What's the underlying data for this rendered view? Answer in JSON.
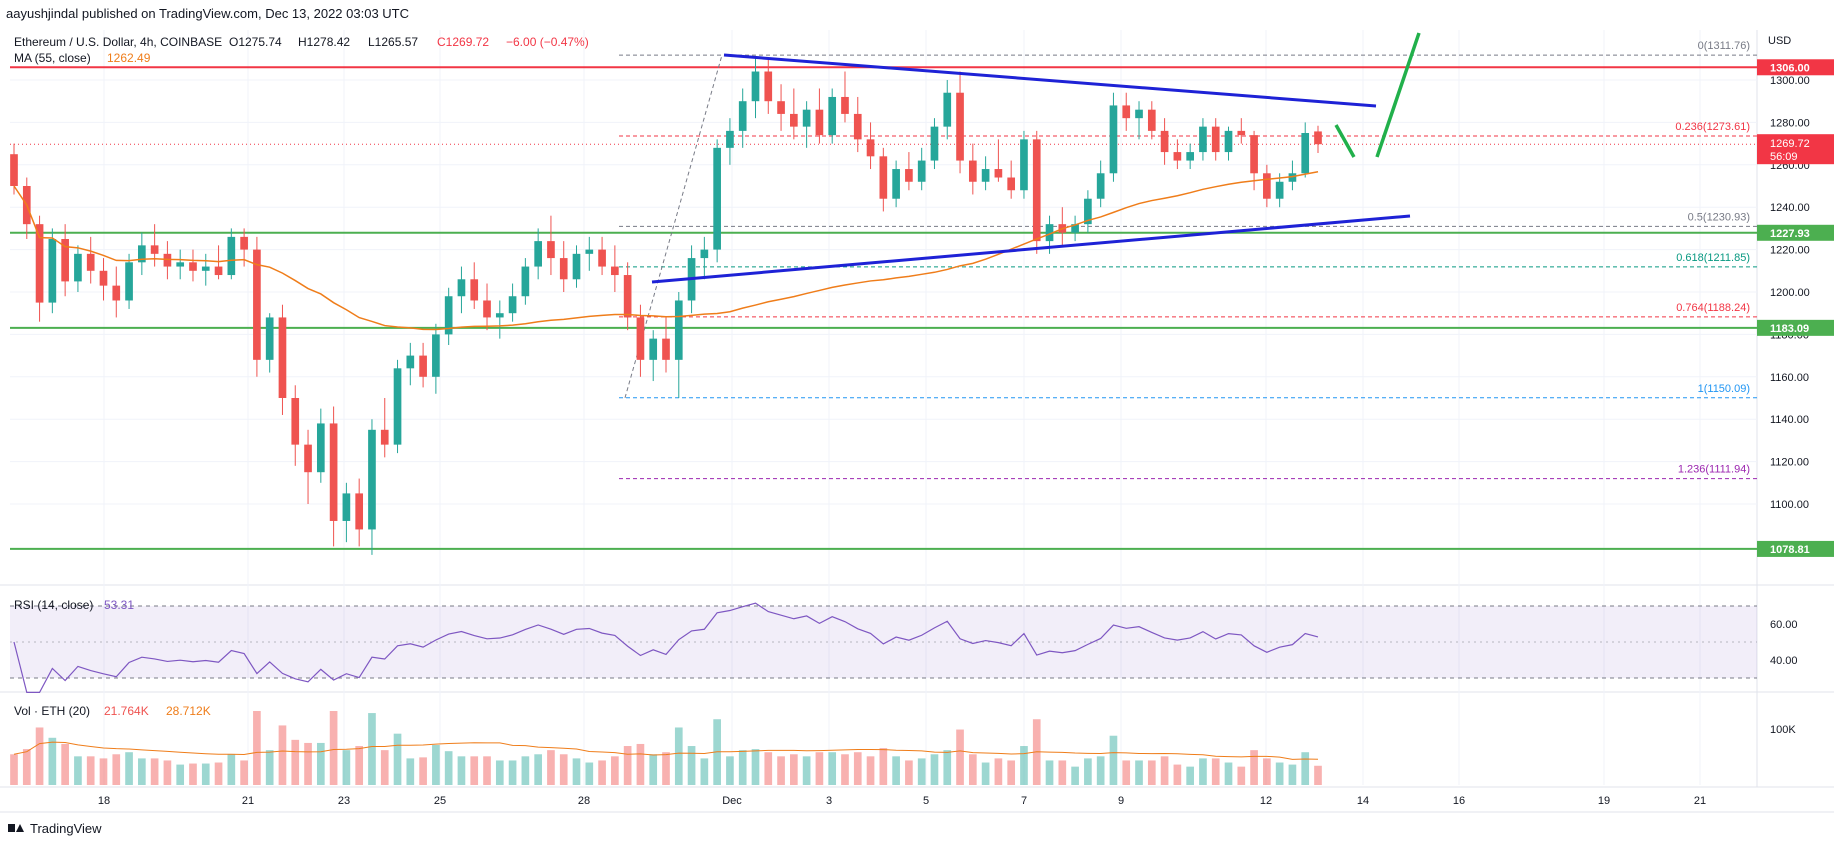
{
  "header": {
    "publisher": "aayushjindal published on TradingView.com, Dec 13, 2022 03:03 UTC"
  },
  "legend": {
    "symbol": "Ethereum / U.S. Dollar, 4h, COINBASE",
    "open": "O1275.74",
    "high": "H1278.42",
    "low": "L1265.57",
    "close": "C1269.72",
    "change": "−6.00 (−0.47%)",
    "ma_label": "MA (55, close)",
    "ma_value": "1262.49"
  },
  "price_axis": {
    "currency": "USD",
    "ticks": [
      "1300.00",
      "1280.00",
      "1260.00",
      "1240.00",
      "1220.00",
      "1200.00",
      "1180.00",
      "1160.00",
      "1140.00",
      "1120.00",
      "1100.00"
    ],
    "tick_values": [
      1300,
      1280,
      1260,
      1240,
      1220,
      1200,
      1180,
      1160,
      1140,
      1120,
      1100
    ],
    "level_labels": [
      {
        "text": "1306.00",
        "value": 1306,
        "color": "#f23645"
      },
      {
        "text": "1227.93",
        "value": 1227.93,
        "color": "#4caf50"
      },
      {
        "text": "1183.09",
        "value": 1183.09,
        "color": "#4caf50"
      },
      {
        "text": "1078.81",
        "value": 1078.81,
        "color": "#4caf50"
      }
    ],
    "current_price": "1269.72",
    "countdown": "56:09"
  },
  "fib_levels": [
    {
      "label": "0(1311.76)",
      "value": 1311.76,
      "color": "#787b86"
    },
    {
      "label": "0.236(1273.61)",
      "value": 1273.61,
      "color": "#f23645"
    },
    {
      "label": "0.5(1230.93)",
      "value": 1230.93,
      "color": "#787b86"
    },
    {
      "label": "0.618(1211.85)",
      "value": 1211.85,
      "color": "#089981"
    },
    {
      "label": "0.764(1188.24)",
      "value": 1188.24,
      "color": "#f23645"
    },
    {
      "label": "1(1150.09)",
      "value": 1150.09,
      "color": "#2196f3"
    },
    {
      "label": "1.236(1111.94)",
      "value": 1111.94,
      "color": "#9c27b0"
    }
  ],
  "time_axis": [
    "18",
    "21",
    "23",
    "25",
    "28",
    "Dec",
    "3",
    "5",
    "7",
    "9",
    "12",
    "14",
    "16",
    "19",
    "21"
  ],
  "rsi": {
    "label": "RSI (14, close)",
    "value": "53.31",
    "ticks": [
      "60.00",
      "40.00"
    ]
  },
  "volume": {
    "label": "Vol · ETH (20)",
    "value1": "21.764K",
    "value2": "28.712K",
    "tick": "100K"
  },
  "footer": {
    "brand": "TradingView"
  },
  "chart_data": {
    "type": "candlestick",
    "title": "Ethereum / U.S. Dollar, 4h, COINBASE",
    "timeframe": "4h",
    "x_labels": [
      "18",
      "21",
      "23",
      "25",
      "28",
      "Dec",
      "3",
      "5",
      "7",
      "9",
      "12",
      "14",
      "16",
      "19",
      "21"
    ],
    "ylim": [
      1070,
      1330
    ],
    "last": {
      "open": 1275.74,
      "high": 1278.42,
      "low": 1265.57,
      "close": 1269.72
    },
    "ma55_last": 1262.49,
    "horizontal_levels": [
      1306.0,
      1227.93,
      1183.09,
      1078.81
    ],
    "fibonacci": [
      {
        "ratio": 0,
        "price": 1311.76
      },
      {
        "ratio": 0.236,
        "price": 1273.61
      },
      {
        "ratio": 0.5,
        "price": 1230.93
      },
      {
        "ratio": 0.618,
        "price": 1211.85
      },
      {
        "ratio": 0.764,
        "price": 1188.24
      },
      {
        "ratio": 1,
        "price": 1150.09
      },
      {
        "ratio": 1.236,
        "price": 1111.94
      }
    ],
    "candles": [
      {
        "o": 1265,
        "h": 1270,
        "l": 1246,
        "c": 1250
      },
      {
        "o": 1250,
        "h": 1254,
        "l": 1225,
        "c": 1232
      },
      {
        "o": 1232,
        "h": 1236,
        "l": 1186,
        "c": 1195
      },
      {
        "o": 1195,
        "h": 1230,
        "l": 1190,
        "c": 1225
      },
      {
        "o": 1225,
        "h": 1232,
        "l": 1198,
        "c": 1205
      },
      {
        "o": 1205,
        "h": 1222,
        "l": 1200,
        "c": 1218
      },
      {
        "o": 1218,
        "h": 1226,
        "l": 1204,
        "c": 1210
      },
      {
        "o": 1210,
        "h": 1216,
        "l": 1196,
        "c": 1203
      },
      {
        "o": 1203,
        "h": 1212,
        "l": 1188,
        "c": 1196
      },
      {
        "o": 1196,
        "h": 1218,
        "l": 1192,
        "c": 1214
      },
      {
        "o": 1214,
        "h": 1228,
        "l": 1208,
        "c": 1222
      },
      {
        "o": 1222,
        "h": 1232,
        "l": 1212,
        "c": 1218
      },
      {
        "o": 1218,
        "h": 1224,
        "l": 1206,
        "c": 1212
      },
      {
        "o": 1212,
        "h": 1220,
        "l": 1206,
        "c": 1214
      },
      {
        "o": 1214,
        "h": 1220,
        "l": 1205,
        "c": 1210
      },
      {
        "o": 1210,
        "h": 1218,
        "l": 1203,
        "c": 1212
      },
      {
        "o": 1212,
        "h": 1222,
        "l": 1206,
        "c": 1208
      },
      {
        "o": 1208,
        "h": 1230,
        "l": 1206,
        "c": 1226
      },
      {
        "o": 1226,
        "h": 1230,
        "l": 1212,
        "c": 1220
      },
      {
        "o": 1220,
        "h": 1226,
        "l": 1160,
        "c": 1168
      },
      {
        "o": 1168,
        "h": 1190,
        "l": 1162,
        "c": 1188
      },
      {
        "o": 1188,
        "h": 1194,
        "l": 1142,
        "c": 1150
      },
      {
        "o": 1150,
        "h": 1156,
        "l": 1118,
        "c": 1128
      },
      {
        "o": 1128,
        "h": 1135,
        "l": 1100,
        "c": 1115
      },
      {
        "o": 1115,
        "h": 1145,
        "l": 1110,
        "c": 1138
      },
      {
        "o": 1138,
        "h": 1146,
        "l": 1080,
        "c": 1092
      },
      {
        "o": 1092,
        "h": 1110,
        "l": 1082,
        "c": 1105
      },
      {
        "o": 1105,
        "h": 1112,
        "l": 1080,
        "c": 1088
      },
      {
        "o": 1088,
        "h": 1140,
        "l": 1076,
        "c": 1135
      },
      {
        "o": 1135,
        "h": 1150,
        "l": 1122,
        "c": 1128
      },
      {
        "o": 1128,
        "h": 1168,
        "l": 1124,
        "c": 1164
      },
      {
        "o": 1164,
        "h": 1176,
        "l": 1156,
        "c": 1170
      },
      {
        "o": 1170,
        "h": 1176,
        "l": 1155,
        "c": 1160
      },
      {
        "o": 1160,
        "h": 1185,
        "l": 1152,
        "c": 1180
      },
      {
        "o": 1180,
        "h": 1202,
        "l": 1175,
        "c": 1198
      },
      {
        "o": 1198,
        "h": 1212,
        "l": 1190,
        "c": 1206
      },
      {
        "o": 1206,
        "h": 1214,
        "l": 1192,
        "c": 1196
      },
      {
        "o": 1196,
        "h": 1204,
        "l": 1182,
        "c": 1188
      },
      {
        "o": 1188,
        "h": 1196,
        "l": 1178,
        "c": 1190
      },
      {
        "o": 1190,
        "h": 1204,
        "l": 1186,
        "c": 1198
      },
      {
        "o": 1198,
        "h": 1216,
        "l": 1194,
        "c": 1212
      },
      {
        "o": 1212,
        "h": 1230,
        "l": 1206,
        "c": 1224
      },
      {
        "o": 1224,
        "h": 1236,
        "l": 1208,
        "c": 1216
      },
      {
        "o": 1216,
        "h": 1224,
        "l": 1200,
        "c": 1206
      },
      {
        "o": 1206,
        "h": 1222,
        "l": 1202,
        "c": 1218
      },
      {
        "o": 1218,
        "h": 1226,
        "l": 1210,
        "c": 1220
      },
      {
        "o": 1220,
        "h": 1226,
        "l": 1208,
        "c": 1212
      },
      {
        "o": 1212,
        "h": 1222,
        "l": 1200,
        "c": 1208
      },
      {
        "o": 1208,
        "h": 1214,
        "l": 1182,
        "c": 1188
      },
      {
        "o": 1188,
        "h": 1194,
        "l": 1160,
        "c": 1168
      },
      {
        "o": 1168,
        "h": 1182,
        "l": 1158,
        "c": 1178
      },
      {
        "o": 1178,
        "h": 1188,
        "l": 1162,
        "c": 1168
      },
      {
        "o": 1168,
        "h": 1200,
        "l": 1150,
        "c": 1196
      },
      {
        "o": 1196,
        "h": 1222,
        "l": 1190,
        "c": 1216
      },
      {
        "o": 1216,
        "h": 1226,
        "l": 1206,
        "c": 1220
      },
      {
        "o": 1220,
        "h": 1272,
        "l": 1214,
        "c": 1268
      },
      {
        "o": 1268,
        "h": 1282,
        "l": 1260,
        "c": 1276
      },
      {
        "o": 1276,
        "h": 1296,
        "l": 1268,
        "c": 1290
      },
      {
        "o": 1290,
        "h": 1311,
        "l": 1282,
        "c": 1304
      },
      {
        "o": 1304,
        "h": 1310,
        "l": 1284,
        "c": 1290
      },
      {
        "o": 1290,
        "h": 1298,
        "l": 1276,
        "c": 1284
      },
      {
        "o": 1284,
        "h": 1296,
        "l": 1272,
        "c": 1278
      },
      {
        "o": 1278,
        "h": 1290,
        "l": 1268,
        "c": 1286
      },
      {
        "o": 1286,
        "h": 1296,
        "l": 1270,
        "c": 1274
      },
      {
        "o": 1274,
        "h": 1296,
        "l": 1270,
        "c": 1292
      },
      {
        "o": 1292,
        "h": 1304,
        "l": 1280,
        "c": 1284
      },
      {
        "o": 1284,
        "h": 1292,
        "l": 1266,
        "c": 1272
      },
      {
        "o": 1272,
        "h": 1280,
        "l": 1258,
        "c": 1264
      },
      {
        "o": 1264,
        "h": 1268,
        "l": 1238,
        "c": 1244
      },
      {
        "o": 1244,
        "h": 1262,
        "l": 1240,
        "c": 1258
      },
      {
        "o": 1258,
        "h": 1266,
        "l": 1248,
        "c": 1252
      },
      {
        "o": 1252,
        "h": 1268,
        "l": 1248,
        "c": 1262
      },
      {
        "o": 1262,
        "h": 1282,
        "l": 1258,
        "c": 1278
      },
      {
        "o": 1278,
        "h": 1300,
        "l": 1272,
        "c": 1294
      },
      {
        "o": 1294,
        "h": 1304,
        "l": 1256,
        "c": 1262
      },
      {
        "o": 1262,
        "h": 1270,
        "l": 1246,
        "c": 1252
      },
      {
        "o": 1252,
        "h": 1264,
        "l": 1248,
        "c": 1258
      },
      {
        "o": 1258,
        "h": 1272,
        "l": 1252,
        "c": 1254
      },
      {
        "o": 1254,
        "h": 1262,
        "l": 1244,
        "c": 1248
      },
      {
        "o": 1248,
        "h": 1276,
        "l": 1244,
        "c": 1272
      },
      {
        "o": 1272,
        "h": 1276,
        "l": 1218,
        "c": 1224
      },
      {
        "o": 1224,
        "h": 1236,
        "l": 1218,
        "c": 1232
      },
      {
        "o": 1232,
        "h": 1240,
        "l": 1222,
        "c": 1228
      },
      {
        "o": 1228,
        "h": 1236,
        "l": 1224,
        "c": 1232
      },
      {
        "o": 1232,
        "h": 1248,
        "l": 1228,
        "c": 1244
      },
      {
        "o": 1244,
        "h": 1262,
        "l": 1240,
        "c": 1256
      },
      {
        "o": 1256,
        "h": 1294,
        "l": 1252,
        "c": 1288
      },
      {
        "o": 1288,
        "h": 1294,
        "l": 1276,
        "c": 1282
      },
      {
        "o": 1282,
        "h": 1290,
        "l": 1272,
        "c": 1286
      },
      {
        "o": 1286,
        "h": 1290,
        "l": 1272,
        "c": 1276
      },
      {
        "o": 1276,
        "h": 1282,
        "l": 1260,
        "c": 1266
      },
      {
        "o": 1266,
        "h": 1272,
        "l": 1258,
        "c": 1262
      },
      {
        "o": 1262,
        "h": 1270,
        "l": 1258,
        "c": 1266
      },
      {
        "o": 1266,
        "h": 1282,
        "l": 1262,
        "c": 1278
      },
      {
        "o": 1278,
        "h": 1282,
        "l": 1262,
        "c": 1266
      },
      {
        "o": 1266,
        "h": 1278,
        "l": 1262,
        "c": 1276
      },
      {
        "o": 1276,
        "h": 1282,
        "l": 1270,
        "c": 1274
      },
      {
        "o": 1274,
        "h": 1276,
        "l": 1248,
        "c": 1256
      },
      {
        "o": 1256,
        "h": 1260,
        "l": 1240,
        "c": 1244
      },
      {
        "o": 1244,
        "h": 1256,
        "l": 1240,
        "c": 1252
      },
      {
        "o": 1252,
        "h": 1262,
        "l": 1248,
        "c": 1256
      },
      {
        "o": 1256,
        "h": 1280,
        "l": 1254,
        "c": 1275
      },
      {
        "o": 1275.74,
        "h": 1278.42,
        "l": 1265.57,
        "c": 1269.72
      }
    ],
    "rsi": {
      "ylim": [
        20,
        80
      ],
      "band": [
        30,
        70
      ],
      "last": 53.31
    },
    "volume": {
      "unit": "ETH",
      "tick": 100000
    }
  }
}
